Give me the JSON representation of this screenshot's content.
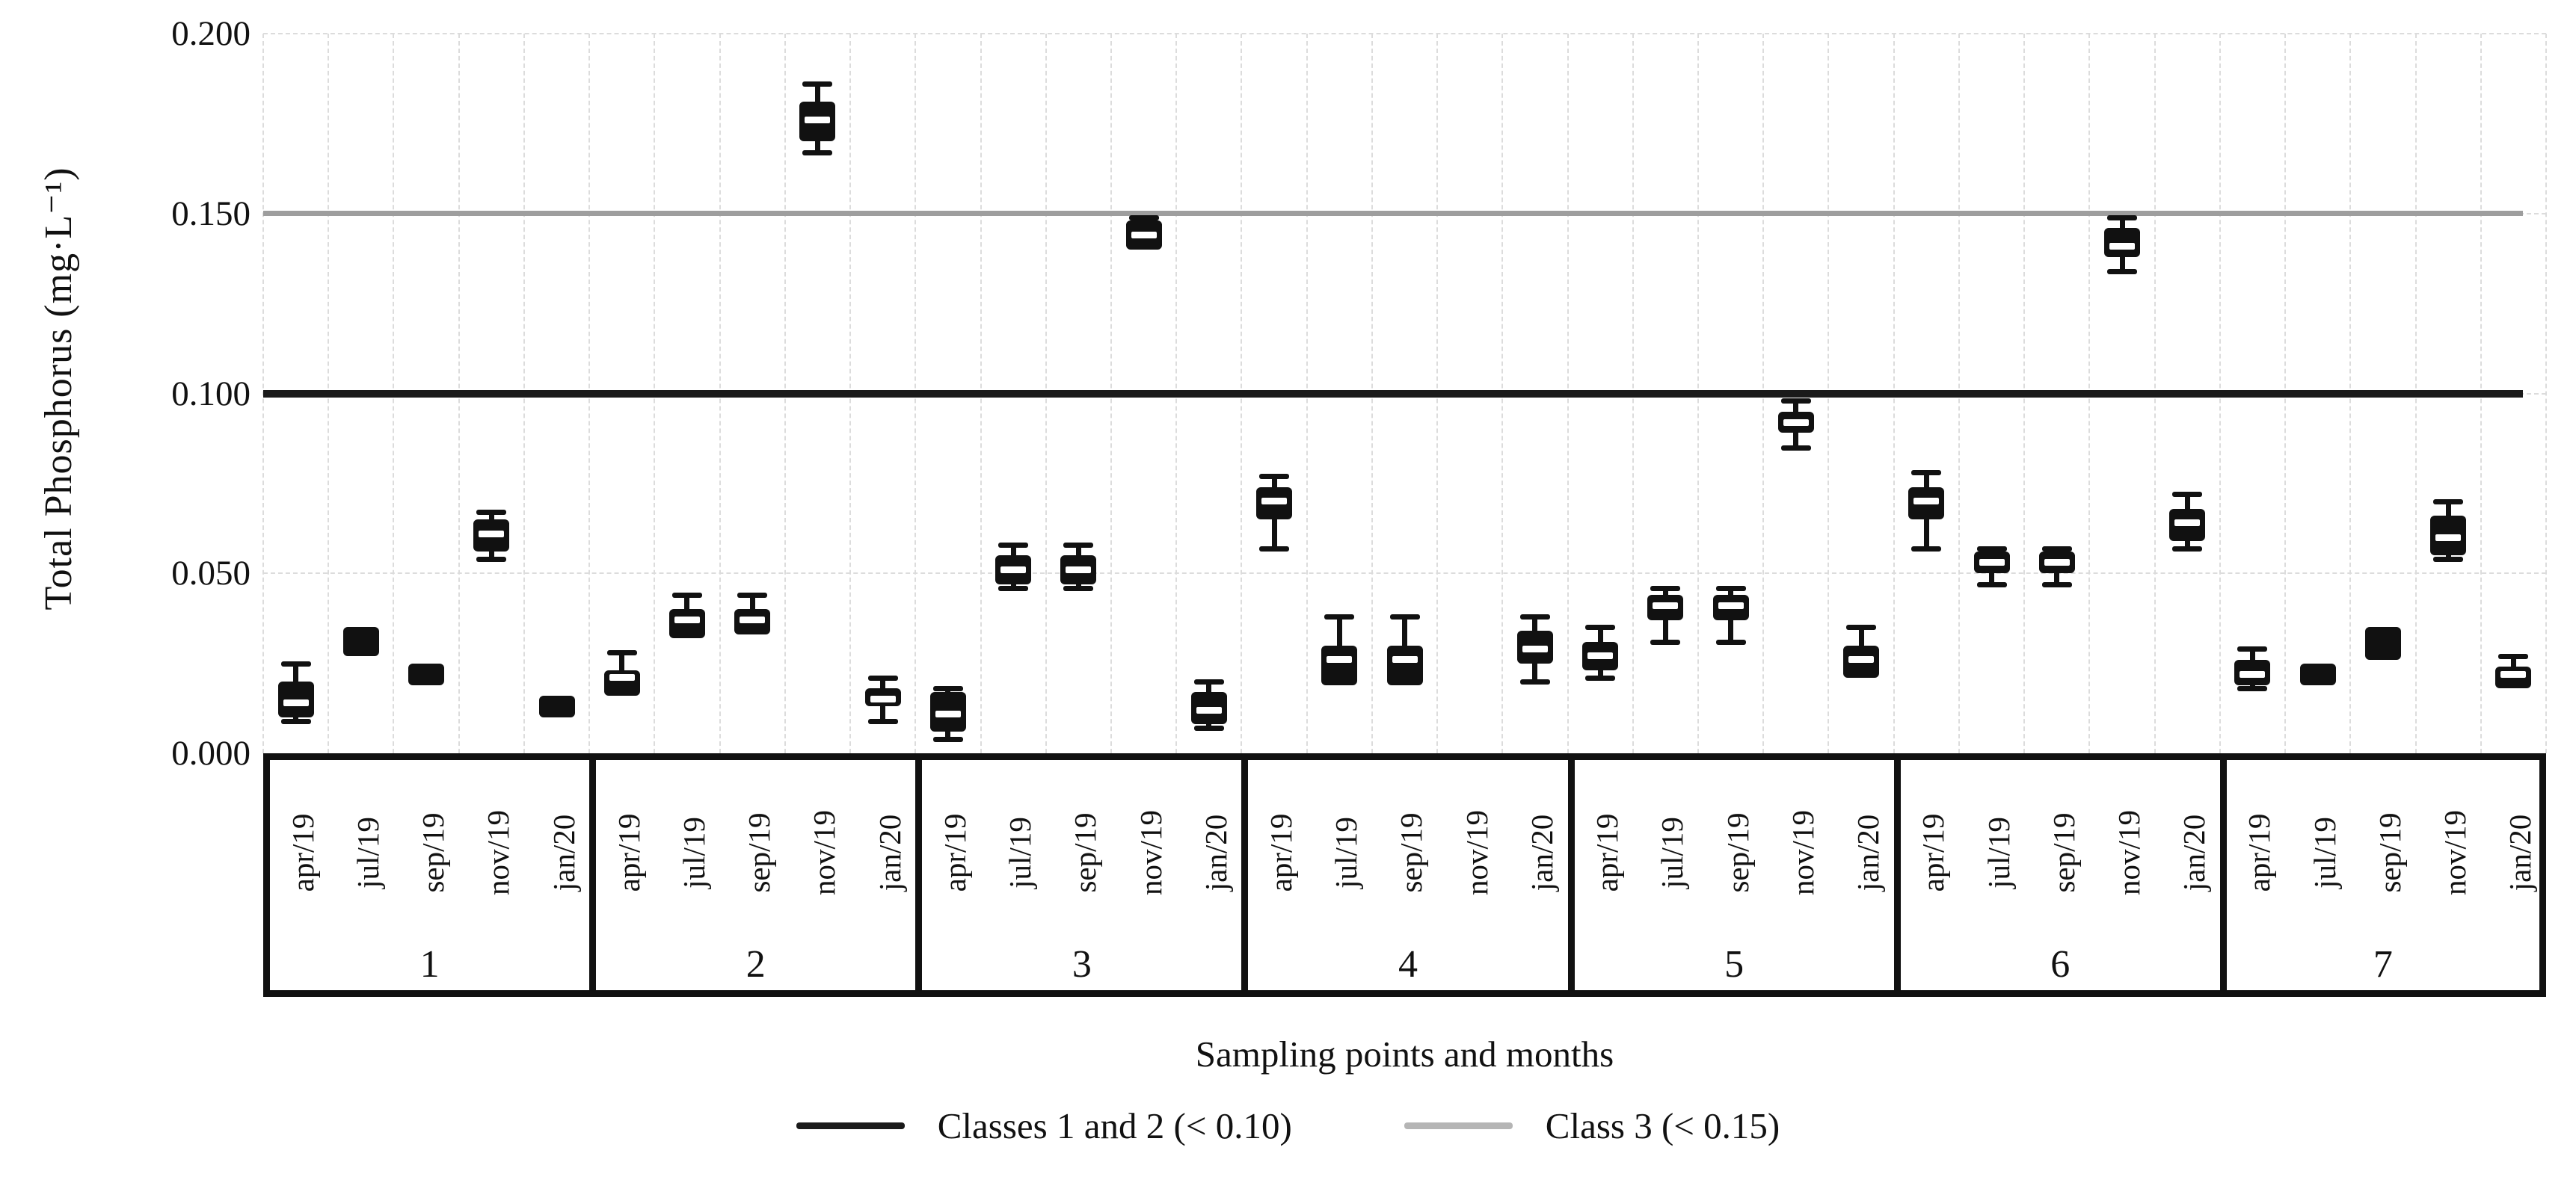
{
  "y_axis": {
    "title": "Total Phosphorus (mg·L⁻¹)",
    "ticks": [
      {
        "label": "0.200",
        "value": 0.2
      },
      {
        "label": "0.150",
        "value": 0.15
      },
      {
        "label": "0.100",
        "value": 0.1
      },
      {
        "label": "0.050",
        "value": 0.05
      },
      {
        "label": "0.000",
        "value": 0.0
      }
    ],
    "min": 0.0,
    "max": 0.2,
    "grid": "dashed-light-gray"
  },
  "x_axis": {
    "title": "Sampling points and months",
    "months": [
      "apr/19",
      "jul/19",
      "sep/19",
      "nov/19",
      "jan/20"
    ],
    "group_numbers": [
      "1",
      "2",
      "3",
      "4",
      "5",
      "6",
      "7"
    ]
  },
  "legend": [
    {
      "label": "Classes 1 and 2 (< 0.10)",
      "color": "#1a1a1a"
    },
    {
      "label": "Class 3 (< 0.15)",
      "color": "#b5b5b5"
    }
  ],
  "reference_lines": [
    {
      "name": "classes-1-2",
      "value": 0.1,
      "color": "#1a1a1a",
      "thickness": 10
    },
    {
      "name": "class-3",
      "value": 0.15,
      "color": "#9e9e9e",
      "thickness": 7
    }
  ],
  "chart_data": {
    "type": "boxplot",
    "title": "",
    "ylabel": "Total Phosphorus (mg·L⁻¹)",
    "xlabel": "Sampling points and months",
    "ylim": [
      0.0,
      0.2
    ],
    "unit": "mg·L⁻¹",
    "groups": [
      {
        "point": "1",
        "boxes": [
          {
            "month": "apr/19",
            "low": 0.009,
            "q1": 0.01,
            "median": 0.014,
            "q3": 0.02,
            "high": 0.025,
            "solid": false
          },
          {
            "month": "jul/19",
            "low": 0.027,
            "q1": 0.027,
            "median": 0.031,
            "q3": 0.035,
            "high": 0.035,
            "solid": true
          },
          {
            "month": "sep/19",
            "low": 0.019,
            "q1": 0.019,
            "median": 0.022,
            "q3": 0.025,
            "high": 0.025,
            "solid": true
          },
          {
            "month": "nov/19",
            "low": 0.054,
            "q1": 0.056,
            "median": 0.061,
            "q3": 0.065,
            "high": 0.067,
            "solid": false
          },
          {
            "month": "jan/20",
            "low": 0.01,
            "q1": 0.01,
            "median": 0.013,
            "q3": 0.016,
            "high": 0.016,
            "solid": true
          }
        ]
      },
      {
        "point": "2",
        "boxes": [
          {
            "month": "apr/19",
            "low": 0.016,
            "q1": 0.016,
            "median": 0.021,
            "q3": 0.023,
            "high": 0.028,
            "solid": false
          },
          {
            "month": "jul/19",
            "low": 0.032,
            "q1": 0.032,
            "median": 0.037,
            "q3": 0.04,
            "high": 0.044,
            "solid": false
          },
          {
            "month": "sep/19",
            "low": 0.033,
            "q1": 0.033,
            "median": 0.037,
            "q3": 0.04,
            "high": 0.044,
            "solid": false
          },
          {
            "month": "nov/19",
            "low": 0.167,
            "q1": 0.17,
            "median": 0.176,
            "q3": 0.181,
            "high": 0.186,
            "solid": false
          },
          {
            "month": "jan/20",
            "low": 0.009,
            "q1": 0.013,
            "median": 0.015,
            "q3": 0.018,
            "high": 0.021,
            "solid": false
          }
        ]
      },
      {
        "point": "3",
        "boxes": [
          {
            "month": "apr/19",
            "low": 0.004,
            "q1": 0.006,
            "median": 0.011,
            "q3": 0.017,
            "high": 0.018,
            "solid": false
          },
          {
            "month": "jul/19",
            "low": 0.046,
            "q1": 0.047,
            "median": 0.051,
            "q3": 0.055,
            "high": 0.058,
            "solid": false
          },
          {
            "month": "sep/19",
            "low": 0.046,
            "q1": 0.047,
            "median": 0.051,
            "q3": 0.055,
            "high": 0.058,
            "solid": false
          },
          {
            "month": "nov/19",
            "low": 0.14,
            "q1": 0.14,
            "median": 0.144,
            "q3": 0.148,
            "high": 0.149,
            "solid": false
          },
          {
            "month": "jan/20",
            "low": 0.007,
            "q1": 0.008,
            "median": 0.012,
            "q3": 0.017,
            "high": 0.02,
            "solid": false
          }
        ]
      },
      {
        "point": "4",
        "boxes": [
          {
            "month": "apr/19",
            "low": 0.057,
            "q1": 0.065,
            "median": 0.07,
            "q3": 0.074,
            "high": 0.077,
            "solid": false
          },
          {
            "month": "jul/19",
            "low": 0.019,
            "q1": 0.019,
            "median": 0.026,
            "q3": 0.03,
            "high": 0.038,
            "solid": false
          },
          {
            "month": "sep/19",
            "low": 0.019,
            "q1": 0.019,
            "median": 0.026,
            "q3": 0.03,
            "high": 0.038,
            "solid": false
          },
          {
            "month": "nov/19",
            "low": null,
            "q1": null,
            "median": null,
            "q3": null,
            "high": null,
            "solid": false
          },
          {
            "month": "jan/20",
            "low": 0.02,
            "q1": 0.025,
            "median": 0.029,
            "q3": 0.034,
            "high": 0.038,
            "solid": false
          }
        ]
      },
      {
        "point": "5",
        "boxes": [
          {
            "month": "apr/19",
            "low": 0.021,
            "q1": 0.023,
            "median": 0.027,
            "q3": 0.031,
            "high": 0.035,
            "solid": false
          },
          {
            "month": "jul/19",
            "low": 0.031,
            "q1": 0.037,
            "median": 0.041,
            "q3": 0.044,
            "high": 0.046,
            "solid": false
          },
          {
            "month": "sep/19",
            "low": 0.031,
            "q1": 0.037,
            "median": 0.041,
            "q3": 0.044,
            "high": 0.046,
            "solid": false
          },
          {
            "month": "nov/19",
            "low": 0.085,
            "q1": 0.089,
            "median": 0.092,
            "q3": 0.095,
            "high": 0.098,
            "solid": false
          },
          {
            "month": "jan/20",
            "low": 0.021,
            "q1": 0.021,
            "median": 0.026,
            "q3": 0.03,
            "high": 0.035,
            "solid": false
          }
        ]
      },
      {
        "point": "6",
        "boxes": [
          {
            "month": "apr/19",
            "low": 0.057,
            "q1": 0.065,
            "median": 0.07,
            "q3": 0.074,
            "high": 0.078,
            "solid": false
          },
          {
            "month": "jul/19",
            "low": 0.047,
            "q1": 0.05,
            "median": 0.053,
            "q3": 0.056,
            "high": 0.057,
            "solid": false
          },
          {
            "month": "sep/19",
            "low": 0.047,
            "q1": 0.05,
            "median": 0.053,
            "q3": 0.056,
            "high": 0.057,
            "solid": false
          },
          {
            "month": "nov/19",
            "low": 0.134,
            "q1": 0.138,
            "median": 0.141,
            "q3": 0.146,
            "high": 0.149,
            "solid": false
          },
          {
            "month": "jan/20",
            "low": 0.057,
            "q1": 0.059,
            "median": 0.064,
            "q3": 0.068,
            "high": 0.072,
            "solid": false
          }
        ]
      },
      {
        "point": "7",
        "boxes": [
          {
            "month": "apr/19",
            "low": 0.018,
            "q1": 0.019,
            "median": 0.022,
            "q3": 0.026,
            "high": 0.029,
            "solid": false
          },
          {
            "month": "jul/19",
            "low": 0.019,
            "q1": 0.019,
            "median": 0.022,
            "q3": 0.025,
            "high": 0.025,
            "solid": true
          },
          {
            "month": "sep/19",
            "low": 0.026,
            "q1": 0.026,
            "median": 0.031,
            "q3": 0.035,
            "high": 0.035,
            "solid": true
          },
          {
            "month": "nov/19",
            "low": 0.054,
            "q1": 0.055,
            "median": 0.06,
            "q3": 0.066,
            "high": 0.07,
            "solid": false
          },
          {
            "month": "jan/20",
            "low": 0.018,
            "q1": 0.018,
            "median": 0.022,
            "q3": 0.024,
            "high": 0.027,
            "solid": false
          }
        ]
      }
    ]
  }
}
